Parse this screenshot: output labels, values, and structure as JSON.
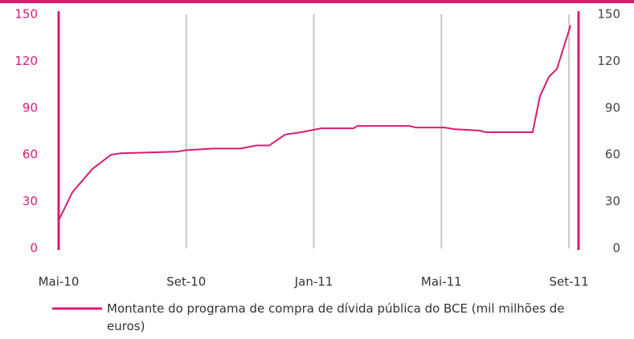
{
  "chart_data": {
    "type": "line",
    "x": [
      0,
      0.43,
      1.06,
      1.64,
      1.94,
      3.7,
      4.0,
      4.84,
      5.7,
      6.2,
      6.6,
      7.1,
      7.6,
      8.24,
      9.24,
      9.37,
      11.0,
      11.2,
      12.1,
      12.4,
      13.2,
      13.4,
      14.86,
      15.09,
      15.37,
      15.62,
      15.79,
      16.05
    ],
    "series": [
      {
        "name": "Montante do programa de compra de dívida pública do BCE (mil milhões de euros)",
        "color": "#d81b72",
        "values": [
          18,
          36,
          51,
          60,
          61,
          62,
          63,
          64,
          64,
          66,
          66,
          73,
          74.5,
          77,
          77,
          78.5,
          78.5,
          77.5,
          77.5,
          76.5,
          75.5,
          74.5,
          74.5,
          97.5,
          110,
          115,
          126,
          143
        ]
      }
    ],
    "xlim": [
      0,
      16.3
    ],
    "xticks": [
      {
        "value": 0,
        "label": "Mai-10"
      },
      {
        "value": 4,
        "label": "Set-10"
      },
      {
        "value": 8,
        "label": "Jan-11"
      },
      {
        "value": 12,
        "label": "Mai-11"
      },
      {
        "value": 16,
        "label": "Set-11"
      }
    ],
    "ylim": [
      0,
      150
    ],
    "yticks": [
      0,
      30,
      60,
      90,
      120,
      150
    ],
    "y2lim": [
      0,
      150
    ],
    "y2ticks": [
      0,
      30,
      60,
      90,
      120,
      150
    ],
    "grid": true
  }
}
